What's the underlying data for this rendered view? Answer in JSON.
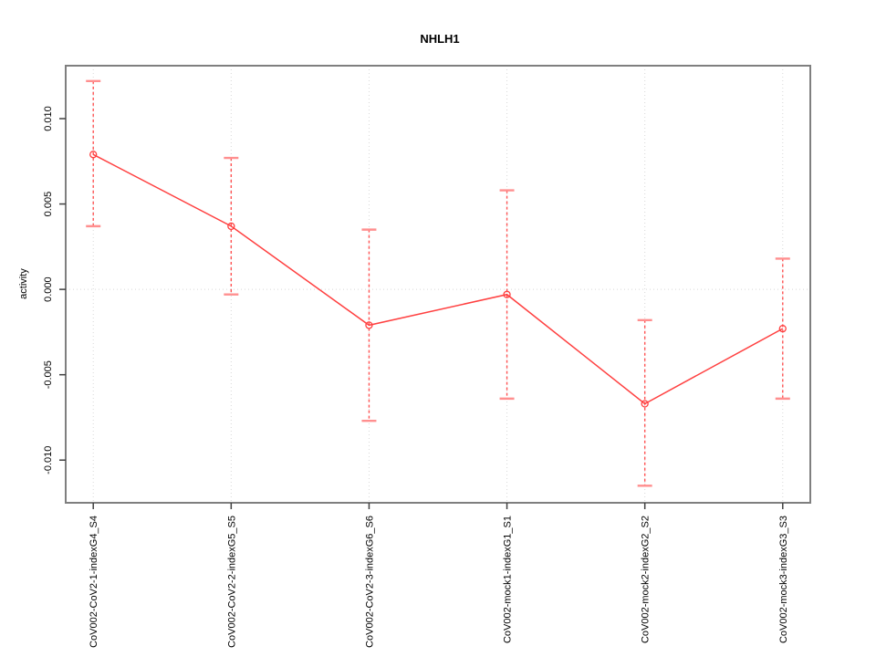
{
  "chart_data": {
    "type": "line",
    "title": "NHLH1",
    "xlabel": "",
    "ylabel": "activity",
    "marker": "open-circle",
    "categories": [
      "CoV002-CoV2-1-indexG4_S4",
      "CoV002-CoV2-2-indexG5_S5",
      "CoV002-CoV2-3-indexG6_S6",
      "CoV002-mock1-indexG1_S1",
      "CoV002-mock2-indexG2_S2",
      "CoV002-mock3-indexG3_S3"
    ],
    "series": [
      {
        "name": "NHLH1 activity",
        "values": [
          0.0079,
          0.0037,
          -0.0021,
          -0.0003,
          -0.0067,
          -0.0023
        ],
        "upper": [
          0.0122,
          0.0077,
          0.0035,
          0.0058,
          -0.0018,
          0.0018
        ],
        "lower": [
          0.0037,
          -0.0003,
          -0.0077,
          -0.0064,
          -0.0115,
          -0.0064
        ]
      }
    ],
    "yticks": [
      -0.01,
      -0.005,
      0.0,
      0.005,
      0.01
    ],
    "ytick_labels": [
      "-0.010",
      "-0.005",
      "0.000",
      "0.005",
      "0.010"
    ],
    "ylim": [
      -0.0125,
      0.0131
    ],
    "grid": {
      "vertical_per_category": true,
      "zero_line": true,
      "horizontal_other": false
    },
    "legend": null,
    "colors": {
      "series_line": "#ff4040",
      "error_line": "#ff5252",
      "error_cap": "#ff8f8f",
      "grid": "#d8d8d8",
      "box": "#7f7f7f",
      "tick": "#404040",
      "text": "#000000",
      "background": "#ffffff"
    }
  }
}
